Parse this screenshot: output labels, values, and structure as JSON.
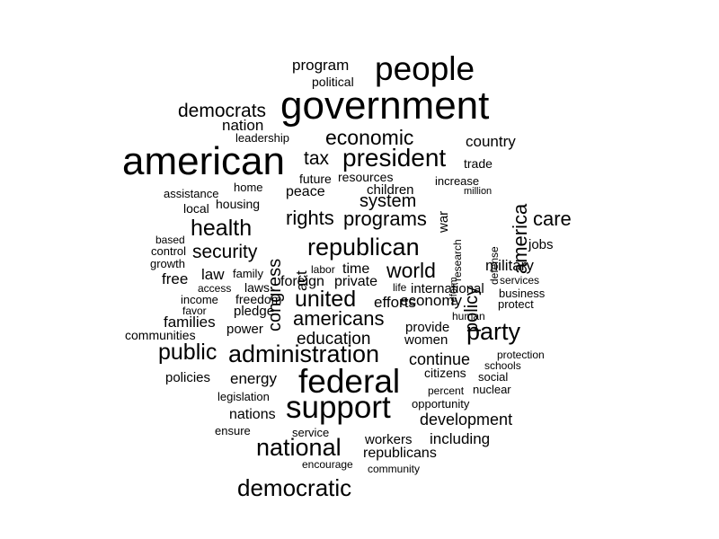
{
  "cloud": {
    "color": "#000000",
    "words": [
      {
        "text": "american",
        "weight": 44
      },
      {
        "text": "government",
        "weight": 44
      },
      {
        "text": "people",
        "weight": 37
      },
      {
        "text": "federal",
        "weight": 37
      },
      {
        "text": "support",
        "weight": 35
      },
      {
        "text": "president",
        "weight": 28
      },
      {
        "text": "administration",
        "weight": 27
      },
      {
        "text": "republican",
        "weight": 27
      },
      {
        "text": "party",
        "weight": 27
      },
      {
        "text": "national",
        "weight": 27
      },
      {
        "text": "democratic",
        "weight": 26
      },
      {
        "text": "health",
        "weight": 25
      },
      {
        "text": "united",
        "weight": 25
      },
      {
        "text": "public",
        "weight": 25
      },
      {
        "text": "economic",
        "weight": 23
      },
      {
        "text": "world",
        "weight": 23
      },
      {
        "text": "rights",
        "weight": 22
      },
      {
        "text": "programs",
        "weight": 22
      },
      {
        "text": "americans",
        "weight": 22
      },
      {
        "text": "america",
        "weight": 22
      },
      {
        "text": "care",
        "weight": 22
      },
      {
        "text": "democrats",
        "weight": 21
      },
      {
        "text": "security",
        "weight": 21
      },
      {
        "text": "tax",
        "weight": 21
      },
      {
        "text": "system",
        "weight": 20
      },
      {
        "text": "congress",
        "weight": 20
      },
      {
        "text": "policy",
        "weight": 20
      },
      {
        "text": "education",
        "weight": 19
      },
      {
        "text": "development",
        "weight": 18
      },
      {
        "text": "continue",
        "weight": 18
      },
      {
        "text": "country",
        "weight": 17
      },
      {
        "text": "nation",
        "weight": 17
      },
      {
        "text": "program",
        "weight": 17
      },
      {
        "text": "act",
        "weight": 17
      },
      {
        "text": "efforts",
        "weight": 17
      },
      {
        "text": "families",
        "weight": 17
      },
      {
        "text": "law",
        "weight": 17
      },
      {
        "text": "free",
        "weight": 17
      },
      {
        "text": "military",
        "weight": 17
      },
      {
        "text": "including",
        "weight": 17
      },
      {
        "text": "economy",
        "weight": 17
      },
      {
        "text": "energy",
        "weight": 17
      },
      {
        "text": "nations",
        "weight": 16
      },
      {
        "text": "republicans",
        "weight": 16
      },
      {
        "text": "peace",
        "weight": 16
      },
      {
        "text": "private",
        "weight": 16
      },
      {
        "text": "foreign",
        "weight": 16
      },
      {
        "text": "time",
        "weight": 16
      },
      {
        "text": "children",
        "weight": 15
      },
      {
        "text": "provide",
        "weight": 15
      },
      {
        "text": "power",
        "weight": 15
      },
      {
        "text": "workers",
        "weight": 15
      },
      {
        "text": "international",
        "weight": 15
      },
      {
        "text": "women",
        "weight": 15
      },
      {
        "text": "policies",
        "weight": 15
      },
      {
        "text": "jobs",
        "weight": 15
      },
      {
        "text": "war",
        "weight": 15
      },
      {
        "text": "pledge",
        "weight": 15
      },
      {
        "text": "laws",
        "weight": 14
      },
      {
        "text": "political",
        "weight": 14
      },
      {
        "text": "trade",
        "weight": 14
      },
      {
        "text": "future",
        "weight": 14
      },
      {
        "text": "freedom",
        "weight": 14
      },
      {
        "text": "citizens",
        "weight": 14
      },
      {
        "text": "communities",
        "weight": 14
      },
      {
        "text": "local",
        "weight": 14
      },
      {
        "text": "resources",
        "weight": 14
      },
      {
        "text": "housing",
        "weight": 14
      },
      {
        "text": "home",
        "weight": 13
      },
      {
        "text": "legislation",
        "weight": 13
      },
      {
        "text": "ensure",
        "weight": 13
      },
      {
        "text": "service",
        "weight": 13
      },
      {
        "text": "income",
        "weight": 13
      },
      {
        "text": "family",
        "weight": 13
      },
      {
        "text": "leadership",
        "weight": 13
      },
      {
        "text": "increase",
        "weight": 13
      },
      {
        "text": "business",
        "weight": 13
      },
      {
        "text": "protect",
        "weight": 13
      },
      {
        "text": "growth",
        "weight": 13
      },
      {
        "text": "control",
        "weight": 13
      },
      {
        "text": "assistance",
        "weight": 13
      },
      {
        "text": "social",
        "weight": 13
      },
      {
        "text": "opportunity",
        "weight": 13
      },
      {
        "text": "nuclear",
        "weight": 13
      },
      {
        "text": "services",
        "weight": 12
      },
      {
        "text": "access",
        "weight": 12
      },
      {
        "text": "labor",
        "weight": 12
      },
      {
        "text": "life",
        "weight": 12
      },
      {
        "text": "human",
        "weight": 12
      },
      {
        "text": "percent",
        "weight": 12
      },
      {
        "text": "defense",
        "weight": 12
      },
      {
        "text": "research",
        "weight": 12
      },
      {
        "text": "based",
        "weight": 12
      },
      {
        "text": "favor",
        "weight": 12
      },
      {
        "text": "reform",
        "weight": 11
      },
      {
        "text": "protection",
        "weight": 12
      },
      {
        "text": "schools",
        "weight": 12
      },
      {
        "text": "million",
        "weight": 11
      },
      {
        "text": "encourage",
        "weight": 12
      },
      {
        "text": "community",
        "weight": 12
      }
    ]
  }
}
